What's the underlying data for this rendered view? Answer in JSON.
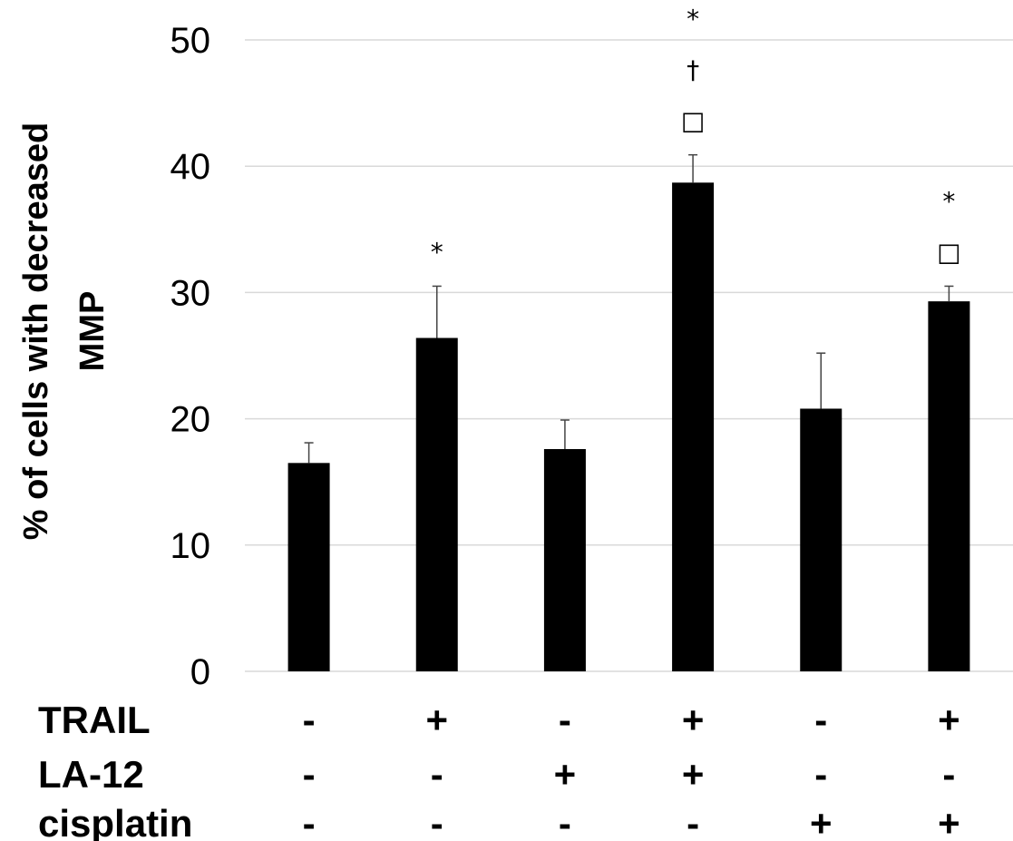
{
  "chart_data": {
    "type": "bar",
    "ylabel_lines": [
      "% of cells with decreased",
      "MMP"
    ],
    "ylim": [
      0,
      50
    ],
    "yticks": [
      "0",
      "10",
      "20",
      "30",
      "40",
      "50"
    ],
    "grid": true,
    "bar_color": "#000000",
    "grid_color": "#d9d9d9",
    "values": [
      16.5,
      26.4,
      17.6,
      38.7,
      20.8,
      29.3
    ],
    "errors": [
      1.6,
      4.1,
      2.3,
      2.2,
      4.4,
      1.2
    ],
    "annotations": [
      [],
      [
        "*"
      ],
      [],
      [
        "*",
        "†",
        "□"
      ],
      [],
      [
        "*",
        "□"
      ]
    ],
    "treatment_rows": [
      {
        "label": "TRAIL",
        "signs": [
          "-",
          "+",
          "-",
          "+",
          "-",
          "+"
        ]
      },
      {
        "label": "LA-12",
        "signs": [
          "-",
          "-",
          "+",
          "+",
          "-",
          "-"
        ]
      },
      {
        "label": "cisplatin",
        "signs": [
          "-",
          "-",
          "-",
          "-",
          "+",
          "+"
        ]
      }
    ]
  }
}
